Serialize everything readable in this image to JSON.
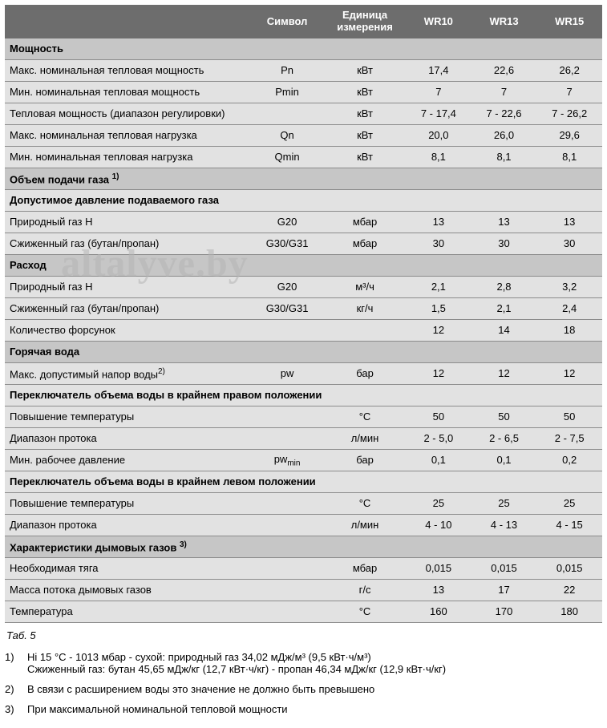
{
  "header": {
    "symbol": "Символ",
    "unit_line1": "Единица",
    "unit_line2": "измерения",
    "m1": "WR10",
    "m2": "WR13",
    "m3": "WR15"
  },
  "sections": {
    "power": "Мощность",
    "gas_vol": "Объем подачи газа ",
    "gas_vol_sup": "1)",
    "gas_press": "Допустимое давление подаваемого газа",
    "consumption": "Расход",
    "hot_water": "Горячая вода",
    "switch_right": "Переключатель объема воды в крайнем правом положении",
    "switch_left": "Переключатель объема воды в крайнем левом положении",
    "flue": "Характеристики дымовых газов ",
    "flue_sup": "3)"
  },
  "rows": {
    "max_pn": {
      "label": "Макс. номинальная тепловая мощность",
      "sym": "Pn",
      "unit": "кВт",
      "v1": "17,4",
      "v2": "22,6",
      "v3": "26,2"
    },
    "min_pn": {
      "label": "Мин. номинальная тепловая мощность",
      "sym": "Pmin",
      "unit": "кВт",
      "v1": "7",
      "v2": "7",
      "v3": "7"
    },
    "range": {
      "label": "Тепловая мощность (диапазон регулировки)",
      "sym": "",
      "unit": "кВт",
      "v1": "7 - 17,4",
      "v2": "7 - 22,6",
      "v3": "7 - 26,2"
    },
    "max_qn": {
      "label": "Макс. номинальная тепловая нагрузка",
      "sym": "Qn",
      "unit": "кВт",
      "v1": "20,0",
      "v2": "26,0",
      "v3": "29,6"
    },
    "min_qn": {
      "label": "Мин. номинальная тепловая нагрузка",
      "sym": "Qmin",
      "unit": "кВт",
      "v1": "8,1",
      "v2": "8,1",
      "v3": "8,1"
    },
    "nat_gas_p": {
      "label": "Природный газ H",
      "sym": "G20",
      "unit": "мбар",
      "v1": "13",
      "v2": "13",
      "v3": "13"
    },
    "lpg_p": {
      "label": "Сжиженный газ (бутан/пропан)",
      "sym": "G30/G31",
      "unit": "мбар",
      "v1": "30",
      "v2": "30",
      "v3": "30"
    },
    "nat_gas_c": {
      "label": "Природный газ H",
      "sym": "G20",
      "unit": "м³/ч",
      "v1": "2,1",
      "v2": "2,8",
      "v3": "3,2"
    },
    "lpg_c": {
      "label": "Сжиженный газ (бутан/пропан)",
      "sym": "G30/G31",
      "unit": "кг/ч",
      "v1": "1,5",
      "v2": "2,1",
      "v3": "2,4"
    },
    "nozzles": {
      "label": "Количество форсунок",
      "sym": "",
      "unit": "",
      "v1": "12",
      "v2": "14",
      "v3": "18"
    },
    "max_water": {
      "label": "Макс. допустимый напор воды",
      "sup": "2)",
      "sym": "pw",
      "unit": "бар",
      "v1": "12",
      "v2": "12",
      "v3": "12"
    },
    "temp_r": {
      "label": "Повышение температуры",
      "sym": "",
      "unit": "°C",
      "v1": "50",
      "v2": "50",
      "v3": "50"
    },
    "flow_r": {
      "label": "Диапазон протока",
      "sym": "",
      "unit": "л/мин",
      "v1": "2 - 5,0",
      "v2": "2 - 6,5",
      "v3": "2 - 7,5"
    },
    "min_wp": {
      "label": "Мин. рабочее давление",
      "sym": "pw",
      "sub": "min",
      "unit": "бар",
      "v1": "0,1",
      "v2": "0,1",
      "v3": "0,2"
    },
    "temp_l": {
      "label": "Повышение температуры",
      "sym": "",
      "unit": "°C",
      "v1": "25",
      "v2": "25",
      "v3": "25"
    },
    "flow_l": {
      "label": "Диапазон протока",
      "sym": "",
      "unit": "л/мин",
      "v1": "4 - 10",
      "v2": "4 - 13",
      "v3": "4 - 15"
    },
    "draft": {
      "label": "Необходимая тяга",
      "sym": "",
      "unit": "мбар",
      "v1": "0,015",
      "v2": "0,015",
      "v3": "0,015"
    },
    "flue_mass": {
      "label": "Масса потока дымовых газов",
      "sym": "",
      "unit": "г/с",
      "v1": "13",
      "v2": "17",
      "v3": "22"
    },
    "flue_temp": {
      "label": "Температура",
      "sym": "",
      "unit": "°C",
      "v1": "160",
      "v2": "170",
      "v3": "180"
    }
  },
  "caption": "Таб. 5",
  "footnotes": {
    "f1n": "1)",
    "f1a": "Hi 15 °C - 1013 мбар - сухой: природный газ 34,02 мДж/м³ (9,5 кВт·ч/м³)",
    "f1b": "Сжиженный газ: бутан 45,65 мДж/кг (12,7 кВт·ч/кг) - пропан 46,34 мДж/кг (12,9 кВт·ч/кг)",
    "f2n": "2)",
    "f2": "В связи с расширением воды это значение не должно быть превышено",
    "f3n": "3)",
    "f3": "При максимальной номинальной тепловой мощности"
  },
  "watermark": "altalyve.by"
}
